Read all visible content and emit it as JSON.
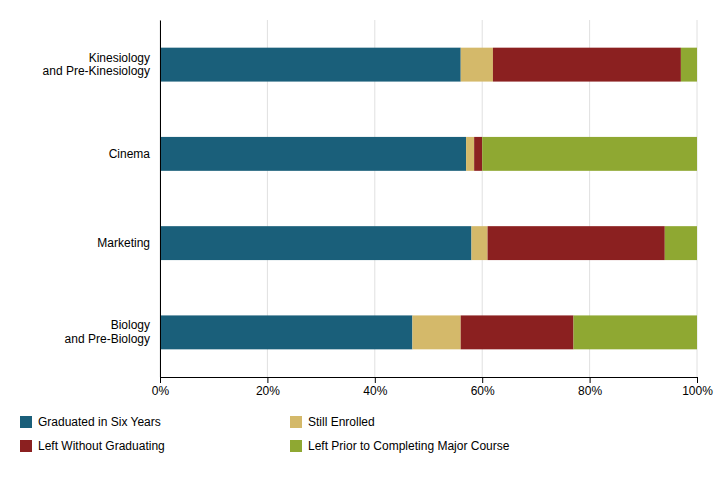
{
  "chart_data": {
    "type": "bar",
    "orientation": "horizontal",
    "stacked": true,
    "categories": [
      "Kinesiology\nand Pre-Kinesiology",
      "Cinema",
      "Marketing",
      "Biology\nand Pre-Biology"
    ],
    "series": [
      {
        "name": "Graduated in Six Years",
        "color": "#1a5f7a",
        "values": [
          56,
          57,
          58,
          47
        ]
      },
      {
        "name": "Still Enrolled",
        "color": "#d4b96a",
        "values": [
          6,
          1.5,
          3,
          9
        ]
      },
      {
        "name": "Left Without Graduating",
        "color": "#8b2020",
        "values": [
          35,
          1.5,
          33,
          21
        ]
      },
      {
        "name": "Left Prior to Completing Major Course",
        "color": "#8fa832",
        "values": [
          3,
          40,
          6,
          23
        ]
      }
    ],
    "xlim": [
      0,
      100
    ],
    "xticks": [
      {
        "value": 0,
        "label": "0%"
      },
      {
        "value": 20,
        "label": "20%"
      },
      {
        "value": 40,
        "label": "40%"
      },
      {
        "value": 60,
        "label": "60%"
      },
      {
        "value": 80,
        "label": "80%"
      },
      {
        "value": 100,
        "label": "100%"
      }
    ],
    "grid": true,
    "legend": "bottom"
  }
}
